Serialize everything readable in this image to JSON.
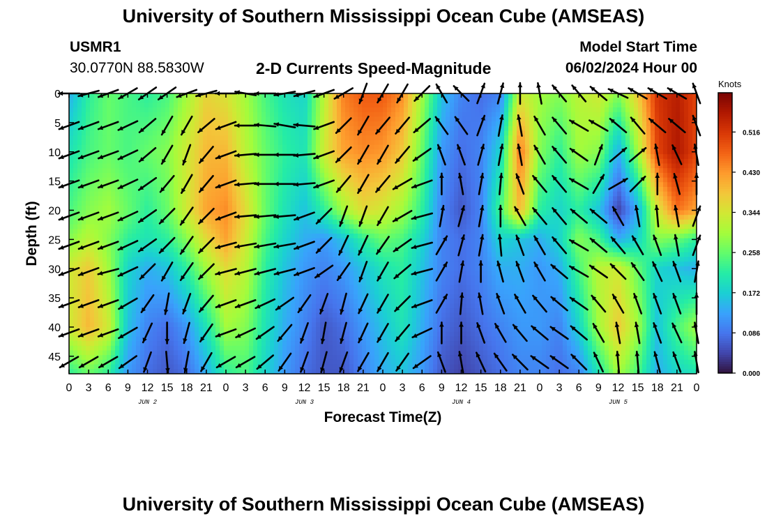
{
  "header": {
    "title": "University of Southern Mississippi Ocean Cube (AMSEAS)",
    "station": "USMR1",
    "coords": "30.0770N  88.5830W",
    "subtitle": "2-D Currents Speed-Magnitude",
    "model_label": "Model Start Time",
    "model_time": "06/02/2024 Hour 00"
  },
  "footer": {
    "title": "University of Southern Mississippi Ocean Cube (AMSEAS)"
  },
  "chart_data": {
    "type": "heatmap",
    "xlabel": "Forecast Time(Z)",
    "ylabel": "Depth (ft)",
    "x_range_hours": [
      0,
      96
    ],
    "y_range_ft": [
      0,
      48
    ],
    "x_tick_labels": [
      "0",
      "3",
      "6",
      "9",
      "12",
      "15",
      "18",
      "21",
      "0",
      "3",
      "6",
      "9",
      "12",
      "15",
      "18",
      "21",
      "0",
      "3",
      "6",
      "9",
      "12",
      "15",
      "18",
      "21",
      "0",
      "3",
      "6",
      "9",
      "12",
      "15",
      "18",
      "21",
      "0"
    ],
    "date_labels": [
      "JUN 2",
      "JUN 3",
      "JUN 4",
      "JUN 5"
    ],
    "y_ticks": [
      0,
      5,
      10,
      15,
      20,
      25,
      30,
      35,
      40,
      45
    ],
    "colorbar": {
      "units": "Knots",
      "ticks": [
        0.0,
        0.086,
        0.172,
        0.258,
        0.344,
        0.43,
        0.516
      ],
      "tick_labels": [
        "0.000",
        "0.086",
        "0.172",
        "0.258",
        "0.344",
        "0.430",
        "0.516"
      ],
      "max": 0.6,
      "colors": [
        "#30123b",
        "#4145ab",
        "#4675ed",
        "#39a2fc",
        "#1bcfd4",
        "#24eca6",
        "#61fc6c",
        "#a4fc3b",
        "#d1e834",
        "#f3c63a",
        "#fe9b2d",
        "#f36315",
        "#d93806",
        "#b11901",
        "#7a0403"
      ]
    },
    "speed_knots": {
      "depth_ft": [
        0,
        10,
        20,
        25,
        30,
        40,
        48
      ],
      "time_hours": [
        0,
        3,
        6,
        9,
        12,
        15,
        18,
        21,
        24,
        27,
        30,
        33,
        36,
        39,
        42,
        45,
        48,
        51,
        54,
        57,
        60,
        63,
        66,
        69,
        72,
        75,
        78,
        81,
        84,
        87,
        90,
        93,
        96
      ],
      "values": [
        [
          0.14,
          0.22,
          0.26,
          0.24,
          0.22,
          0.24,
          0.3,
          0.37,
          0.35,
          0.3,
          0.24,
          0.2,
          0.18,
          0.32,
          0.45,
          0.48,
          0.48,
          0.44,
          0.3,
          0.16,
          0.1,
          0.08,
          0.1,
          0.34,
          0.3,
          0.28,
          0.32,
          0.34,
          0.28,
          0.38,
          0.52,
          0.55,
          0.5
        ],
        [
          0.2,
          0.24,
          0.26,
          0.24,
          0.26,
          0.28,
          0.34,
          0.4,
          0.4,
          0.32,
          0.26,
          0.22,
          0.2,
          0.34,
          0.42,
          0.44,
          0.43,
          0.38,
          0.26,
          0.12,
          0.08,
          0.1,
          0.18,
          0.46,
          0.28,
          0.22,
          0.3,
          0.28,
          0.14,
          0.3,
          0.5,
          0.56,
          0.5
        ],
        [
          0.24,
          0.28,
          0.3,
          0.26,
          0.22,
          0.26,
          0.34,
          0.42,
          0.44,
          0.36,
          0.26,
          0.2,
          0.16,
          0.22,
          0.3,
          0.36,
          0.34,
          0.3,
          0.22,
          0.1,
          0.06,
          0.1,
          0.24,
          0.4,
          0.22,
          0.18,
          0.22,
          0.16,
          0.04,
          0.14,
          0.34,
          0.46,
          0.42
        ],
        [
          0.28,
          0.32,
          0.28,
          0.22,
          0.2,
          0.22,
          0.28,
          0.36,
          0.42,
          0.34,
          0.24,
          0.18,
          0.14,
          0.12,
          0.16,
          0.22,
          0.26,
          0.24,
          0.18,
          0.1,
          0.08,
          0.1,
          0.18,
          0.16,
          0.14,
          0.18,
          0.28,
          0.24,
          0.14,
          0.18,
          0.28,
          0.26,
          0.22
        ],
        [
          0.34,
          0.38,
          0.3,
          0.18,
          0.14,
          0.16,
          0.22,
          0.3,
          0.36,
          0.32,
          0.22,
          0.16,
          0.12,
          0.1,
          0.12,
          0.16,
          0.2,
          0.22,
          0.16,
          0.1,
          0.08,
          0.1,
          0.14,
          0.14,
          0.12,
          0.14,
          0.24,
          0.32,
          0.34,
          0.26,
          0.18,
          0.16,
          0.14
        ],
        [
          0.34,
          0.4,
          0.34,
          0.16,
          0.1,
          0.08,
          0.12,
          0.2,
          0.3,
          0.28,
          0.2,
          0.14,
          0.1,
          0.06,
          0.08,
          0.12,
          0.16,
          0.2,
          0.14,
          0.08,
          0.06,
          0.08,
          0.1,
          0.12,
          0.12,
          0.1,
          0.18,
          0.3,
          0.38,
          0.3,
          0.16,
          0.24,
          0.3
        ],
        [
          0.22,
          0.26,
          0.22,
          0.12,
          0.08,
          0.06,
          0.08,
          0.14,
          0.22,
          0.24,
          0.18,
          0.12,
          0.08,
          0.06,
          0.06,
          0.1,
          0.14,
          0.16,
          0.12,
          0.06,
          0.04,
          0.06,
          0.08,
          0.1,
          0.1,
          0.08,
          0.1,
          0.2,
          0.3,
          0.24,
          0.14,
          0.18,
          0.2
        ]
      ]
    },
    "arrows": {
      "rows_depth_ft": [
        0,
        5.5,
        10.5,
        15.5,
        21,
        26,
        30.5,
        36,
        41,
        46
      ],
      "cols_hours": [
        0,
        3,
        6,
        9,
        12,
        15,
        18,
        21,
        24,
        27,
        30,
        33,
        36,
        39,
        42,
        45,
        48,
        51,
        54,
        57,
        60,
        63,
        66,
        69,
        72,
        75,
        78,
        81,
        84,
        87,
        90,
        93,
        96
      ],
      "direction_deg": [
        [
          180,
          195,
          200,
          210,
          215,
          215,
          200,
          195,
          180,
          170,
          180,
          190,
          195,
          200,
          210,
          250,
          240,
          240,
          225,
          120,
          135,
          70,
          75,
          90,
          100,
          130,
          130,
          140,
          155,
          150,
          150,
          150,
          110
        ],
        [
          200,
          200,
          200,
          205,
          220,
          240,
          240,
          220,
          200,
          180,
          175,
          170,
          175,
          200,
          225,
          240,
          230,
          230,
          220,
          125,
          125,
          70,
          80,
          100,
          120,
          130,
          150,
          150,
          140,
          130,
          140,
          140,
          110
        ],
        [
          200,
          200,
          200,
          205,
          220,
          240,
          250,
          230,
          200,
          185,
          180,
          180,
          185,
          200,
          225,
          240,
          240,
          230,
          215,
          110,
          110,
          75,
          80,
          100,
          120,
          130,
          145,
          70,
          40,
          40,
          100,
          115,
          100
        ],
        [
          200,
          200,
          200,
          205,
          215,
          230,
          240,
          230,
          200,
          185,
          180,
          180,
          185,
          200,
          230,
          240,
          230,
          210,
          200,
          90,
          100,
          80,
          85,
          110,
          130,
          130,
          150,
          60,
          30,
          45,
          90,
          105,
          90
        ],
        [
          200,
          200,
          200,
          205,
          215,
          225,
          235,
          225,
          200,
          185,
          185,
          185,
          200,
          225,
          250,
          250,
          240,
          210,
          195,
          80,
          75,
          80,
          90,
          120,
          130,
          130,
          140,
          140,
          120,
          100,
          95,
          100,
          70
        ],
        [
          200,
          200,
          200,
          205,
          215,
          225,
          235,
          225,
          195,
          190,
          190,
          190,
          200,
          225,
          245,
          245,
          235,
          215,
          195,
          60,
          75,
          80,
          95,
          110,
          120,
          130,
          150,
          140,
          130,
          120,
          110,
          100,
          70
        ],
        [
          200,
          200,
          195,
          205,
          225,
          240,
          235,
          225,
          195,
          195,
          195,
          195,
          200,
          215,
          235,
          250,
          240,
          220,
          195,
          60,
          80,
          90,
          105,
          110,
          120,
          140,
          150,
          145,
          135,
          125,
          115,
          110,
          80
        ],
        [
          200,
          200,
          200,
          210,
          235,
          260,
          250,
          230,
          200,
          200,
          205,
          215,
          235,
          250,
          255,
          245,
          240,
          225,
          200,
          60,
          85,
          100,
          110,
          120,
          130,
          140,
          145,
          130,
          120,
          110,
          110,
          110,
          90
        ],
        [
          200,
          200,
          200,
          210,
          245,
          270,
          255,
          235,
          200,
          205,
          215,
          230,
          250,
          260,
          255,
          245,
          240,
          230,
          205,
          90,
          90,
          110,
          120,
          130,
          140,
          145,
          140,
          120,
          100,
          100,
          110,
          115,
          100
        ],
        [
          210,
          210,
          210,
          215,
          250,
          275,
          260,
          240,
          210,
          210,
          220,
          235,
          250,
          255,
          250,
          240,
          240,
          235,
          215,
          110,
          100,
          115,
          125,
          135,
          145,
          145,
          135,
          115,
          95,
          95,
          105,
          110,
          100
        ]
      ]
    }
  }
}
